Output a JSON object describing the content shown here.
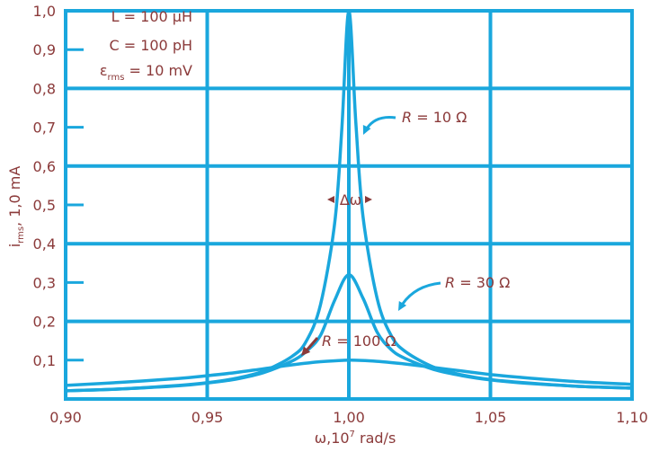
{
  "chart_data": {
    "type": "line",
    "xlabel_main": "ω,10",
    "xlabel_sup": "7",
    "xlabel_rest": " rad/s",
    "ylabel_main": "i",
    "ylabel_sub": "rms",
    "ylabel_rest": ", 1,0 mA",
    "xlim": [
      0.9,
      1.1
    ],
    "ylim": [
      0.0,
      1.0
    ],
    "x_ticks": [
      {
        "value": 0.9,
        "label": "0,90"
      },
      {
        "value": 0.95,
        "label": "0,95"
      },
      {
        "value": 1.0,
        "label": "1,00"
      },
      {
        "value": 1.05,
        "label": "1,05"
      },
      {
        "value": 1.1,
        "label": "1,10"
      }
    ],
    "y_ticks": [
      {
        "value": 0.1,
        "label": "0,1"
      },
      {
        "value": 0.2,
        "label": "0,2"
      },
      {
        "value": 0.3,
        "label": "0,3"
      },
      {
        "value": 0.4,
        "label": "0,4"
      },
      {
        "value": 0.5,
        "label": "0,5"
      },
      {
        "value": 0.6,
        "label": "0,6"
      },
      {
        "value": 0.7,
        "label": "0,7"
      },
      {
        "value": 0.8,
        "label": "0,8"
      },
      {
        "value": 0.9,
        "label": "0,9"
      },
      {
        "value": 1.0,
        "label": "1,0"
      }
    ],
    "grid": true,
    "parameters": {
      "L": "L = 100 μH",
      "C": "C = 100 pH",
      "eps_main": "ε",
      "eps_sub": "rms",
      "eps_rest": " = 10 mV"
    },
    "series": [
      {
        "name": "R = 10 Ω",
        "x": [
          0.9,
          0.92,
          0.94,
          0.95,
          0.96,
          0.97,
          0.98,
          0.985,
          0.99,
          0.995,
          0.9975,
          1.0,
          1.0025,
          1.005,
          1.01,
          1.015,
          1.02,
          1.03,
          1.04,
          1.05,
          1.06,
          1.08,
          1.1
        ],
        "y": [
          0.021,
          0.026,
          0.035,
          0.042,
          0.053,
          0.072,
          0.11,
          0.149,
          0.243,
          0.452,
          0.692,
          1.0,
          0.708,
          0.471,
          0.259,
          0.163,
          0.122,
          0.082,
          0.062,
          0.05,
          0.043,
          0.033,
          0.028
        ]
      },
      {
        "name": "R = 30 Ω",
        "x": [
          0.9,
          0.92,
          0.94,
          0.95,
          0.96,
          0.97,
          0.98,
          0.985,
          0.99,
          0.995,
          1.0,
          1.005,
          1.01,
          1.015,
          1.02,
          1.03,
          1.04,
          1.05,
          1.06,
          1.08,
          1.1
        ],
        "y": [
          0.021,
          0.026,
          0.034,
          0.041,
          0.051,
          0.068,
          0.098,
          0.123,
          0.164,
          0.254,
          0.32,
          0.26,
          0.172,
          0.127,
          0.104,
          0.076,
          0.06,
          0.049,
          0.042,
          0.033,
          0.028
        ]
      },
      {
        "name": "R = 100 Ω",
        "x": [
          0.9,
          0.92,
          0.94,
          0.95,
          0.96,
          0.97,
          0.98,
          0.99,
          1.0,
          1.01,
          1.02,
          1.03,
          1.04,
          1.05,
          1.06,
          1.08,
          1.1
        ],
        "y": [
          0.035,
          0.043,
          0.053,
          0.06,
          0.068,
          0.078,
          0.088,
          0.096,
          0.1,
          0.097,
          0.09,
          0.081,
          0.072,
          0.063,
          0.056,
          0.045,
          0.038
        ]
      }
    ],
    "annotations": [
      {
        "label_var": "R",
        "label_rest": " = 10 Ω"
      },
      {
        "label_var": "R",
        "label_rest": " = 30 Ω"
      },
      {
        "label_var": "R",
        "label_rest": " = 100 Ω"
      },
      {
        "label": "Δω"
      }
    ],
    "colors": {
      "grid": "#1aa7dd",
      "curve": "#1aa7dd",
      "text": "#8b3a3a",
      "arrow": "#1aa7dd",
      "arrow_r100": "#8b3a3a"
    }
  }
}
